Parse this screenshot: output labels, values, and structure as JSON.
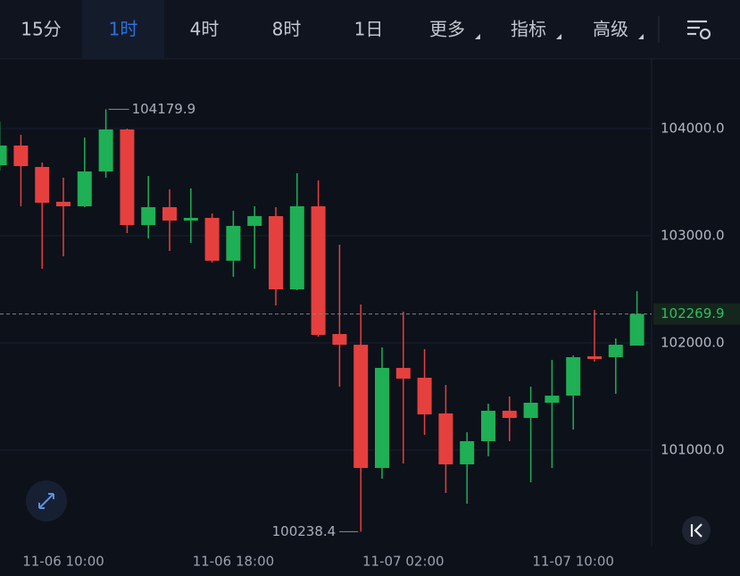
{
  "tabs": [
    {
      "label": "15分"
    },
    {
      "label": "1时",
      "active": true
    },
    {
      "label": "4时"
    },
    {
      "label": "8时"
    },
    {
      "label": "1日"
    },
    {
      "label": "更多",
      "menu": true
    },
    {
      "label": "指标",
      "menu": true
    },
    {
      "label": "高级",
      "menu": true
    }
  ],
  "chart_data": {
    "type": "candlestick",
    "categories": [
      null,
      null,
      null,
      "11-06 10:00",
      null,
      null,
      null,
      null,
      null,
      null,
      null,
      "11-06 18:00",
      null,
      null,
      null,
      null,
      null,
      null,
      null,
      "11-07 02:00",
      null,
      null,
      null,
      null,
      null,
      null,
      null,
      "11-07 10:00",
      null,
      null,
      null
    ],
    "open": [
      103658,
      103842,
      103642,
      103317,
      103275,
      103600,
      103992,
      103100,
      103267,
      103142,
      103167,
      102767,
      103092,
      103183,
      102500,
      103275,
      102083,
      101983,
      100833,
      101767,
      101675,
      101342,
      100867,
      101083,
      101367,
      101300,
      101442,
      101508,
      101875,
      101867,
      101975
    ],
    "high": [
      104067,
      103942,
      103683,
      103542,
      103917,
      104179.9,
      104000,
      103558,
      103433,
      103442,
      103208,
      103233,
      103275,
      103267,
      103583,
      103517,
      102917,
      102358,
      101958,
      102292,
      101942,
      101608,
      101167,
      101433,
      101500,
      101592,
      101842,
      101883,
      102308,
      102042,
      102483
    ],
    "low": [
      103608,
      103275,
      102692,
      102808,
      103267,
      103542,
      103025,
      102975,
      102858,
      102933,
      102750,
      102617,
      102692,
      102350,
      102492,
      102058,
      101592,
      100238.4,
      100733,
      100875,
      101142,
      100600,
      100500,
      100942,
      101083,
      100700,
      100833,
      101192,
      101825,
      101525,
      101975
    ],
    "close": [
      103842,
      103650,
      103308,
      103275,
      103600,
      103992,
      103100,
      103267,
      103142,
      103167,
      102767,
      103092,
      103183,
      102500,
      103275,
      102075,
      101983,
      100833,
      101767,
      101667,
      101333,
      100867,
      101083,
      101367,
      101300,
      101442,
      101508,
      101867,
      101850,
      101983,
      102269.9
    ],
    "up_color": "#1faf54",
    "down_color": "#e5403e",
    "ylim": [
      100100,
      104650
    ],
    "yticks": [
      {
        "value": 101000,
        "label": "101000.0"
      },
      {
        "value": 102000,
        "label": "102000.0"
      },
      {
        "value": 103000,
        "label": "103000.0"
      },
      {
        "value": 104000,
        "label": "104000.0"
      }
    ],
    "grid": true
  }
}
